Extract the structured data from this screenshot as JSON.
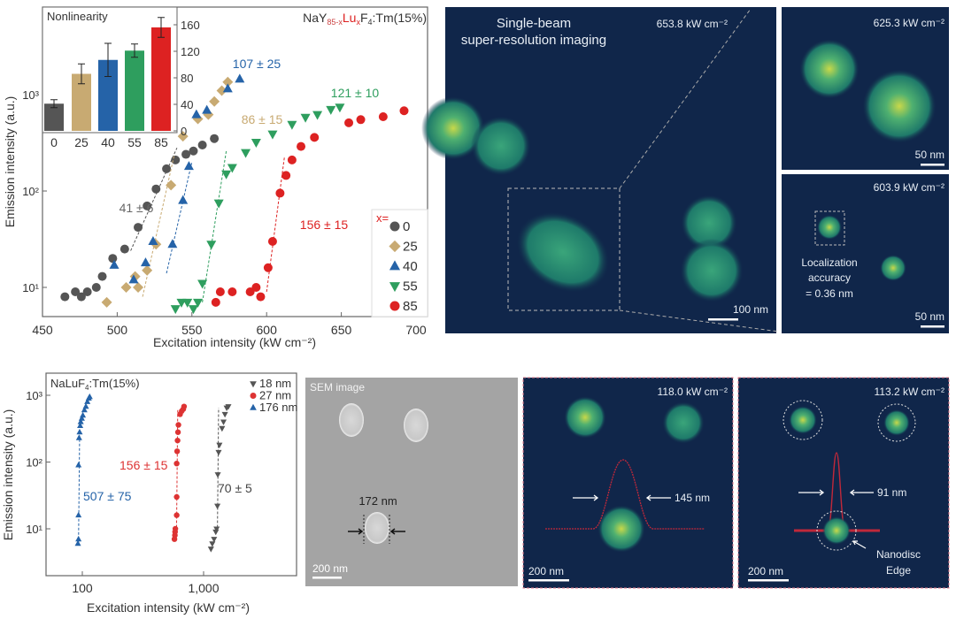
{
  "chart_data": [
    {
      "type": "scatter",
      "title": "",
      "formula_parts": [
        "NaY",
        "85-x",
        "Lu",
        "x",
        "F",
        "4",
        ":Tm(15%)"
      ],
      "xlabel": "Excitation intensity (kW cm⁻²)",
      "ylabel": "Emission intensity (a.u.)",
      "xlim": [
        450,
        700
      ],
      "ylim": [
        5,
        8300
      ],
      "yscale": "log",
      "xticks": [
        450,
        500,
        550,
        600,
        650,
        700
      ],
      "yticks": [
        {
          "v": 10,
          "label": "10¹"
        },
        {
          "v": 100,
          "label": "10²"
        },
        {
          "v": 1000,
          "label": "10³"
        }
      ],
      "legend": {
        "title": "x=",
        "placement": "bottom-right"
      },
      "series": [
        {
          "name": "0",
          "color": "#555555",
          "marker": "circle",
          "fit": [
            [
              509,
              24
            ],
            [
              540,
              280
            ]
          ],
          "slope_label": "41 ± 6",
          "points": [
            [
              465,
              8
            ],
            [
              472,
              9
            ],
            [
              476,
              8
            ],
            [
              480,
              9
            ],
            [
              486,
              10
            ],
            [
              490,
              13
            ],
            [
              497,
              20
            ],
            [
              505,
              25
            ],
            [
              514,
              42
            ],
            [
              520,
              70
            ],
            [
              526,
              105
            ],
            [
              533,
              170
            ],
            [
              539,
              210
            ],
            [
              546,
              240
            ],
            [
              551,
              260
            ],
            [
              557,
              300
            ],
            [
              565,
              350
            ]
          ]
        },
        {
          "name": "25",
          "color": "#c8aa72",
          "marker": "diamond",
          "fit": [
            [
              517,
              8
            ],
            [
              538,
              230
            ]
          ],
          "slope_label": "86 ± 15",
          "points": [
            [
              493,
              7
            ],
            [
              506,
              10
            ],
            [
              512,
              13
            ],
            [
              514,
              10
            ],
            [
              520,
              15
            ],
            [
              526,
              28
            ],
            [
              536,
              115
            ],
            [
              544,
              370
            ],
            [
              554,
              560
            ],
            [
              561,
              620
            ],
            [
              565,
              850
            ],
            [
              570,
              1100
            ],
            [
              574,
              1350
            ]
          ]
        },
        {
          "name": "40",
          "color": "#2563a8",
          "marker": "triangle-up",
          "fit": [
            [
              533,
              14
            ],
            [
              550,
              200
            ]
          ],
          "slope_label": "107 ± 25",
          "points": [
            [
              498,
              17
            ],
            [
              511,
              12
            ],
            [
              519,
              18
            ],
            [
              524,
              30
            ],
            [
              537,
              28
            ],
            [
              544,
              80
            ],
            [
              548,
              180
            ],
            [
              553,
              620
            ],
            [
              560,
              690
            ],
            [
              574,
              1150
            ],
            [
              582,
              1450
            ]
          ]
        },
        {
          "name": "55",
          "color": "#2e9e5e",
          "marker": "triangle-down",
          "fit": [
            [
              557,
              7
            ],
            [
              573,
              260
            ]
          ],
          "slope_label": "121 ± 10",
          "points": [
            [
              539,
              6
            ],
            [
              543,
              7
            ],
            [
              547,
              7
            ],
            [
              551,
              6
            ],
            [
              554,
              7
            ],
            [
              557,
              11
            ],
            [
              563,
              28
            ],
            [
              568,
              75
            ],
            [
              573,
              150
            ],
            [
              577,
              175
            ],
            [
              586,
              250
            ],
            [
              593,
              320
            ],
            [
              604,
              390
            ],
            [
              617,
              490
            ],
            [
              626,
              580
            ],
            [
              634,
              620
            ],
            [
              643,
              700
            ],
            [
              649,
              740
            ]
          ]
        },
        {
          "name": "85",
          "color": "#dd2222",
          "marker": "circle",
          "fit": [
            [
              600,
              9
            ],
            [
              612,
              230
            ]
          ],
          "slope_label": "156 ± 15",
          "points": [
            [
              566,
              7
            ],
            [
              569,
              9
            ],
            [
              577,
              9
            ],
            [
              589,
              9
            ],
            [
              593,
              10
            ],
            [
              596,
              8
            ],
            [
              601,
              16
            ],
            [
              604,
              30
            ],
            [
              609,
              95
            ],
            [
              613,
              145
            ],
            [
              617,
              210
            ],
            [
              623,
              290
            ],
            [
              632,
              360
            ],
            [
              655,
              510
            ],
            [
              663,
              550
            ],
            [
              678,
              590
            ],
            [
              692,
              680
            ]
          ]
        }
      ]
    },
    {
      "type": "bar",
      "title": "Nonlinearity",
      "categories": [
        "0",
        "25",
        "40",
        "55",
        "85"
      ],
      "values": [
        41,
        86,
        107,
        121,
        156
      ],
      "errors": [
        6,
        15,
        25,
        10,
        15
      ],
      "colors": [
        "#555555",
        "#c8aa72",
        "#2563a8",
        "#2e9e5e",
        "#dd2222"
      ],
      "ylim": [
        0,
        180
      ],
      "yticks": [
        0,
        40,
        80,
        120,
        160
      ],
      "yaxis": "right"
    },
    {
      "type": "scatter",
      "title": "",
      "formula_parts": [
        "NaLuF",
        "4",
        ":Tm(15%)"
      ],
      "xlabel": "Excitation intensity (kW cm⁻²)",
      "ylabel": "Emission intensity (a.u.)",
      "xscale": "log",
      "yscale": "log",
      "xlim": [
        50,
        5900
      ],
      "ylim": [
        2,
        2150
      ],
      "xticks": [
        {
          "v": 100,
          "label": "100"
        },
        {
          "v": 1000,
          "label": "1,000"
        }
      ],
      "yticks": [
        {
          "v": 10,
          "label": "10¹"
        },
        {
          "v": 100,
          "label": "10²"
        },
        {
          "v": 1000,
          "label": "10³"
        }
      ],
      "legend": {
        "placement": "top-right"
      },
      "series": [
        {
          "name": "18 nm",
          "color": "#555555",
          "marker": "triangle-down",
          "slope_label": "70 ± 5",
          "fit": [
            [
              1300,
              9
            ],
            [
              1330,
              650
            ]
          ],
          "points": [
            [
              1150,
              5
            ],
            [
              1180,
              6
            ],
            [
              1220,
              7
            ],
            [
              1260,
              9
            ],
            [
              1280,
              10
            ],
            [
              1300,
              22
            ],
            [
              1310,
              65
            ],
            [
              1330,
              140
            ],
            [
              1350,
              180
            ],
            [
              1420,
              320
            ],
            [
              1460,
              400
            ],
            [
              1500,
              520
            ],
            [
              1550,
              650
            ],
            [
              1600,
              680
            ]
          ]
        },
        {
          "name": "27 nm",
          "color": "#dd3333",
          "marker": "circle",
          "slope_label": "156 ± 15",
          "fit": [
            [
              598,
              9
            ],
            [
              612,
              600
            ]
          ],
          "points": [
            [
              575,
              7
            ],
            [
              580,
              8
            ],
            [
              582,
              9
            ],
            [
              585,
              10
            ],
            [
              600,
              16
            ],
            [
              600,
              30
            ],
            [
              600,
              95
            ],
            [
              605,
              145
            ],
            [
              610,
              210
            ],
            [
              615,
              280
            ],
            [
              620,
              360
            ],
            [
              640,
              520
            ],
            [
              660,
              580
            ],
            [
              680,
              620
            ],
            [
              690,
              680
            ]
          ]
        },
        {
          "name": "176 nm",
          "color": "#2563a8",
          "marker": "triangle-up",
          "slope_label": "507 ± 75",
          "fit": [
            [
              93,
              6
            ],
            [
              95,
              250
            ]
          ],
          "points": [
            [
              92,
              6
            ],
            [
              93,
              7
            ],
            [
              93,
              16
            ],
            [
              93,
              90
            ],
            [
              94,
              230
            ],
            [
              95,
              280
            ],
            [
              96,
              350
            ],
            [
              97,
              400
            ],
            [
              99,
              450
            ],
            [
              101,
              500
            ],
            [
              104,
              600
            ],
            [
              107,
              680
            ],
            [
              110,
              800
            ],
            [
              113,
              900
            ],
            [
              115,
              950
            ]
          ]
        }
      ]
    }
  ],
  "images": {
    "main": {
      "title1": "Single-beam",
      "title2": "super-resolution imaging",
      "power": "653.8 kW cm⁻²",
      "scale": "100 nm"
    },
    "top_right": {
      "power": "625.3 kW cm⁻²",
      "scale": "50 nm"
    },
    "bottom_right": {
      "power": "603.9 kW cm⁻²",
      "scale": "50 nm",
      "note1": "Localization",
      "note2": "accuracy",
      "note3": "= 0.36 nm"
    },
    "sem": {
      "title": "SEM image",
      "size": "172 nm",
      "scale": "200 nm"
    },
    "conf": {
      "power": "118.0 kW cm⁻²",
      "fwhm": "145 nm",
      "scale": "200 nm"
    },
    "sr": {
      "power": "113.2 kW cm⁻²",
      "fwhm": "91 nm",
      "scale": "200 nm",
      "note1": "Nanodisc",
      "note2": "Edge"
    }
  },
  "colors": {
    "image_bg": "#10264a",
    "highlight_border": "#e07a8a"
  }
}
